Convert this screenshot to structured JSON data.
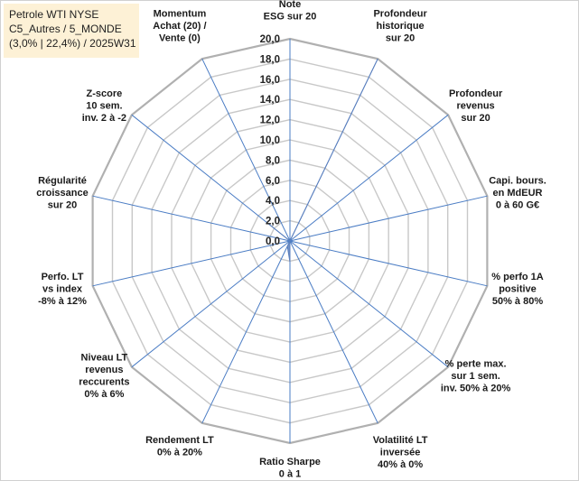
{
  "title_box": {
    "line1": "Petrole WTI NYSE",
    "line2": "C5_Autres / 5_MONDE",
    "line3": "(3,0% | 22,4%) / 2025W31"
  },
  "chart_data": {
    "type": "radar",
    "r_range": [
      0,
      20
    ],
    "r_ticks": [
      "0,0",
      "2,0",
      "4,0",
      "6,0",
      "8,0",
      "10,0",
      "12,0",
      "14,0",
      "16,0",
      "18,0",
      "20,0"
    ],
    "grid": true,
    "series_color": "#5b7fbd",
    "grid_color": "#c8c8c8",
    "axis_color": "#4a7cc4",
    "axes": [
      {
        "label": [
          "Note",
          "ESG sur 20"
        ],
        "value": 0
      },
      {
        "label": [
          "Profondeur",
          "historique",
          "sur 20"
        ],
        "value": 20
      },
      {
        "label": [
          "Profondeur",
          "revenus",
          "sur 20"
        ],
        "value": 0
      },
      {
        "label": [
          "Capi. bours.",
          "en MdEUR",
          "0 à 60 G€"
        ],
        "value": 0
      },
      {
        "label": [
          "% perfo 1A",
          "positive",
          "50% à 80%"
        ],
        "value": 0
      },
      {
        "label": [
          "% perte max.",
          "sur 1 sem.",
          "inv. 50% à 20%"
        ],
        "value": 0
      },
      {
        "label": [
          "Volatilité LT",
          "inversée",
          "40% à 0%"
        ],
        "value": 0
      },
      {
        "label": [
          "Ratio Sharpe",
          "0 à 1"
        ],
        "value": 2.1
      },
      {
        "label": [
          "Rendement LT",
          "0% à 20%"
        ],
        "value": 0.6
      },
      {
        "label": [
          "Niveau LT",
          "revenus",
          "reccurents",
          "0% à 6%"
        ],
        "value": 0
      },
      {
        "label": [
          "Perfo. LT",
          "vs index",
          "-8% à 12%"
        ],
        "value": 0
      },
      {
        "label": [
          "Régularité",
          "croissance",
          "sur 20"
        ],
        "value": 0
      },
      {
        "label": [
          "Z-score",
          "10 sem.",
          "inv. 2 à -2"
        ],
        "value": 2.5
      },
      {
        "label": [
          "Momentum",
          "Achat (20) /",
          "Vente (0)"
        ],
        "value": 0
      }
    ]
  }
}
